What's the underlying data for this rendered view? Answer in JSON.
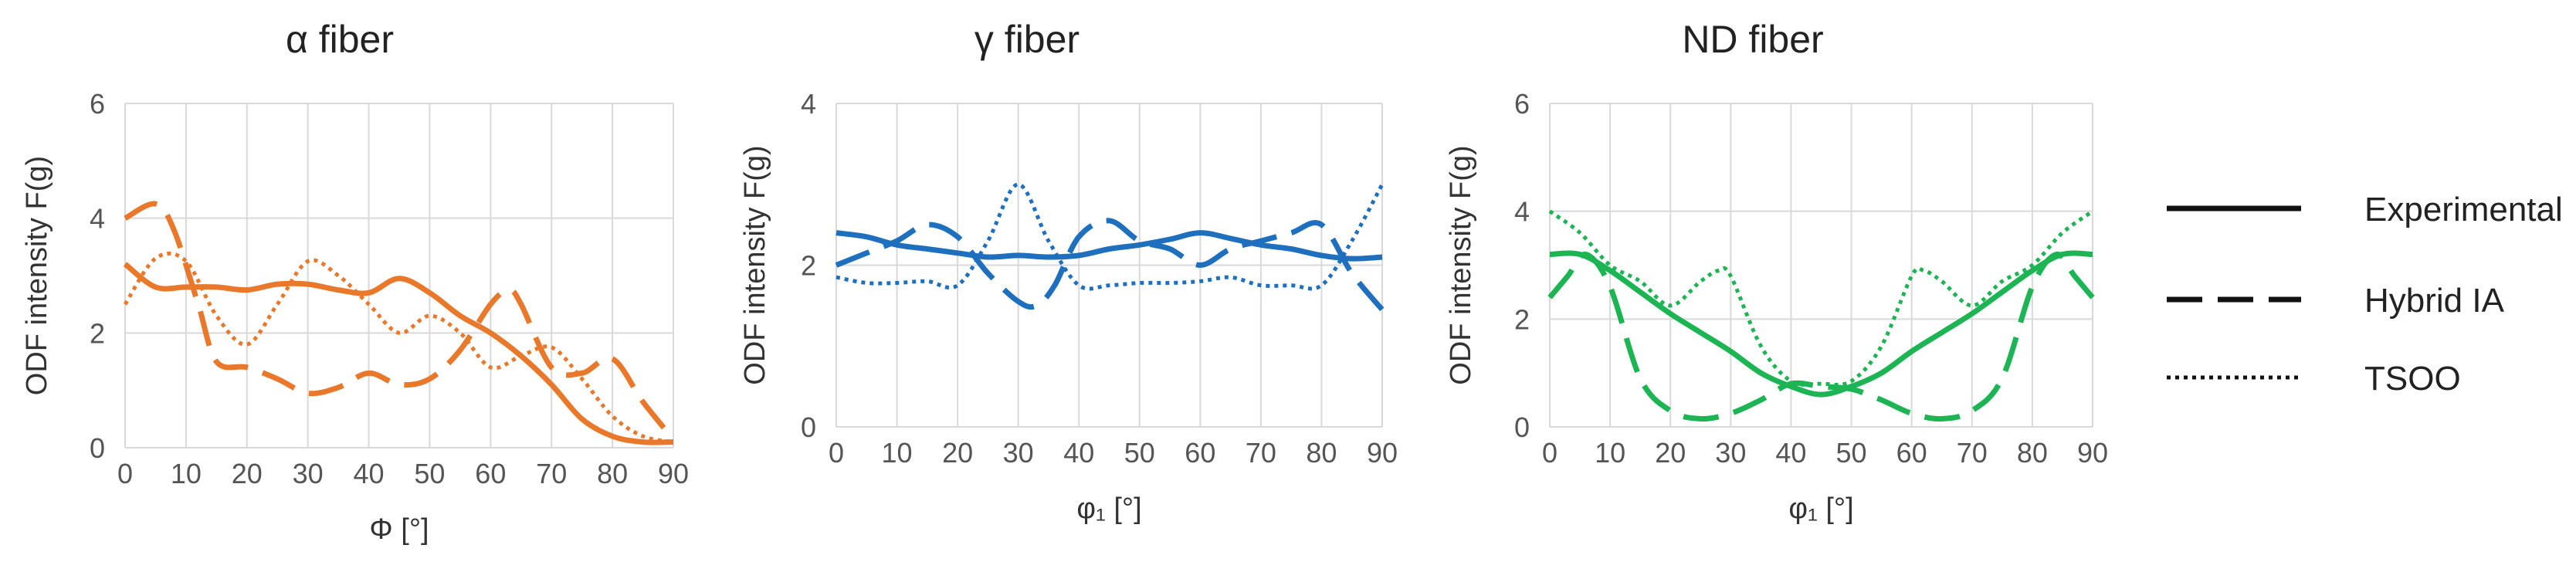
{
  "legend": [
    {
      "label": "Experimental",
      "style": "solid"
    },
    {
      "label": "Hybrid IA",
      "style": "dashed"
    },
    {
      "label": "TSOO",
      "style": "dotted"
    }
  ],
  "chart_data": [
    {
      "type": "line",
      "title": "α  fiber",
      "xlabel": "Φ [°]",
      "ylabel": "ODF intensity F(g)",
      "color": "#E9782B",
      "xlim": [
        0,
        90
      ],
      "ylim": [
        0,
        6
      ],
      "xticks": [
        0,
        10,
        20,
        30,
        40,
        50,
        60,
        70,
        80,
        90
      ],
      "yticks": [
        0,
        2,
        4,
        6
      ],
      "grid": true,
      "series": [
        {
          "name": "Experimental",
          "style": "solid",
          "x": [
            0,
            5,
            10,
            15,
            20,
            25,
            30,
            35,
            40,
            45,
            50,
            55,
            60,
            65,
            70,
            75,
            80,
            85,
            90
          ],
          "y": [
            3.2,
            2.8,
            2.8,
            2.8,
            2.75,
            2.85,
            2.85,
            2.75,
            2.7,
            2.95,
            2.7,
            2.3,
            2.0,
            1.6,
            1.1,
            0.5,
            0.2,
            0.1,
            0.1
          ]
        },
        {
          "name": "Hybrid IA",
          "style": "dashed",
          "x": [
            0,
            5,
            8,
            12,
            15,
            20,
            25,
            30,
            35,
            40,
            45,
            50,
            55,
            60,
            63,
            65,
            70,
            75,
            80,
            85,
            90
          ],
          "y": [
            4.0,
            4.25,
            3.8,
            2.5,
            1.5,
            1.4,
            1.2,
            0.95,
            1.05,
            1.3,
            1.1,
            1.2,
            1.7,
            2.5,
            2.75,
            2.5,
            1.4,
            1.3,
            1.55,
            0.8,
            0.15
          ]
        },
        {
          "name": "TSOO",
          "style": "dotted",
          "x": [
            0,
            5,
            10,
            15,
            20,
            25,
            30,
            35,
            40,
            45,
            50,
            55,
            60,
            65,
            70,
            75,
            80,
            85,
            90
          ],
          "y": [
            2.5,
            3.3,
            3.25,
            2.3,
            1.8,
            2.5,
            3.25,
            3.0,
            2.5,
            2.0,
            2.3,
            2.0,
            1.4,
            1.6,
            1.75,
            1.2,
            0.55,
            0.2,
            0.1
          ]
        }
      ]
    },
    {
      "type": "line",
      "title": "γ  fiber",
      "xlabel": "φ₁ [°]",
      "ylabel": "ODF intensity F(g)",
      "color": "#1F6FBF",
      "xlim": [
        0,
        90
      ],
      "ylim": [
        0,
        4
      ],
      "xticks": [
        0,
        10,
        20,
        30,
        40,
        50,
        60,
        70,
        80,
        90
      ],
      "yticks": [
        0,
        2,
        4
      ],
      "grid": true,
      "series": [
        {
          "name": "Experimental",
          "style": "solid",
          "x": [
            0,
            5,
            10,
            15,
            20,
            25,
            30,
            35,
            40,
            45,
            50,
            55,
            60,
            65,
            70,
            75,
            80,
            85,
            90
          ],
          "y": [
            2.4,
            2.35,
            2.25,
            2.2,
            2.15,
            2.1,
            2.12,
            2.1,
            2.12,
            2.2,
            2.25,
            2.32,
            2.4,
            2.33,
            2.25,
            2.2,
            2.12,
            2.08,
            2.1
          ]
        },
        {
          "name": "Hybrid IA",
          "style": "dashed",
          "x": [
            0,
            5,
            10,
            15,
            20,
            25,
            30,
            33,
            36,
            40,
            45,
            50,
            55,
            60,
            65,
            70,
            75,
            80,
            85,
            90
          ],
          "y": [
            2.0,
            2.15,
            2.3,
            2.5,
            2.35,
            1.9,
            1.55,
            1.5,
            1.75,
            2.35,
            2.55,
            2.3,
            2.2,
            2.0,
            2.2,
            2.3,
            2.4,
            2.5,
            1.9,
            1.45
          ]
        },
        {
          "name": "TSOO",
          "style": "dotted",
          "x": [
            0,
            5,
            10,
            15,
            20,
            25,
            30,
            35,
            40,
            45,
            50,
            55,
            60,
            65,
            70,
            75,
            80,
            85,
            90
          ],
          "y": [
            1.85,
            1.78,
            1.78,
            1.8,
            1.75,
            2.3,
            3.0,
            2.3,
            1.75,
            1.75,
            1.78,
            1.78,
            1.8,
            1.85,
            1.75,
            1.75,
            1.75,
            2.3,
            3.0
          ]
        }
      ]
    },
    {
      "type": "line",
      "title": "ND fiber",
      "xlabel": "φ₁ [°]",
      "ylabel": "ODF intensity F(g)",
      "color": "#1DB454",
      "xlim": [
        0,
        90
      ],
      "ylim": [
        0,
        6
      ],
      "xticks": [
        0,
        10,
        20,
        30,
        40,
        50,
        60,
        70,
        80,
        90
      ],
      "yticks": [
        0,
        2,
        4,
        6
      ],
      "grid": true,
      "series": [
        {
          "name": "Experimental",
          "style": "solid",
          "x": [
            0,
            5,
            10,
            15,
            20,
            25,
            30,
            35,
            40,
            45,
            50,
            55,
            60,
            65,
            70,
            75,
            80,
            85,
            90
          ],
          "y": [
            3.2,
            3.2,
            2.9,
            2.5,
            2.1,
            1.75,
            1.4,
            1.0,
            0.75,
            0.6,
            0.75,
            1.0,
            1.4,
            1.75,
            2.1,
            2.5,
            2.9,
            3.2,
            3.2
          ]
        },
        {
          "name": "Hybrid IA",
          "style": "dashed",
          "x": [
            0,
            3,
            6,
            10,
            15,
            20,
            25,
            30,
            35,
            40,
            45,
            50,
            55,
            60,
            65,
            70,
            75,
            80,
            84,
            87,
            90
          ],
          "y": [
            2.4,
            2.8,
            3.2,
            2.6,
            0.9,
            0.3,
            0.15,
            0.25,
            0.5,
            0.8,
            0.75,
            0.7,
            0.5,
            0.25,
            0.15,
            0.3,
            0.9,
            2.6,
            3.2,
            2.8,
            2.4
          ]
        },
        {
          "name": "TSOO",
          "style": "dotted",
          "x": [
            0,
            5,
            10,
            15,
            20,
            25,
            28,
            30,
            35,
            40,
            45,
            50,
            55,
            60,
            62,
            65,
            70,
            75,
            80,
            85,
            90
          ],
          "y": [
            4.0,
            3.6,
            3.0,
            2.7,
            2.25,
            2.7,
            2.9,
            2.8,
            1.5,
            0.85,
            0.8,
            0.85,
            1.5,
            2.8,
            2.9,
            2.7,
            2.25,
            2.7,
            3.0,
            3.6,
            4.0
          ]
        }
      ]
    }
  ]
}
